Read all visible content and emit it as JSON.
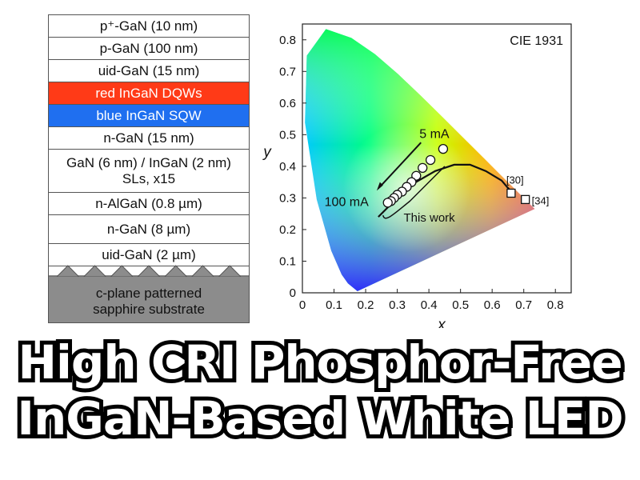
{
  "layers": [
    {
      "label": "p⁺-GaN (10 nm)",
      "color": "#ffffff"
    },
    {
      "label": "p-GaN (100 nm)",
      "color": "#ffffff"
    },
    {
      "label": "uid-GaN (15 nm)",
      "color": "#ffffff"
    },
    {
      "label": "red InGaN DQWs",
      "color": "#ff3a17",
      "text_color": "#ffffff"
    },
    {
      "label": "blue InGaN SQW",
      "color": "#1f6ff0",
      "text_color": "#ffffff"
    },
    {
      "label": "n-GaN (15 nm)",
      "color": "#ffffff"
    },
    {
      "label": "GaN (6 nm) / InGaN (2 nm)\nSLs, x15",
      "color": "#ffffff"
    },
    {
      "label": "n-AlGaN (0.8 µm)",
      "color": "#ffffff"
    },
    {
      "label": "n-GaN (8 µm)",
      "color": "#ffffff"
    },
    {
      "label": "uid-GaN (2 µm)",
      "color": "#ffffff"
    }
  ],
  "substrate": {
    "label": "c-plane patterned\nsapphire substrate",
    "color": "#8c8c8c"
  },
  "headline": {
    "line1": "High CRI Phosphor-Free",
    "line2": "InGaN-Based White LED"
  },
  "chart_data": {
    "type": "scatter",
    "title": "CIE 1931",
    "xlabel": "x",
    "ylabel": "y",
    "xlim": [
      0,
      0.85
    ],
    "ylim": [
      0,
      0.85
    ],
    "xticks": [
      0,
      0.1,
      0.2,
      0.3,
      0.4,
      0.5,
      0.6,
      0.7,
      0.8
    ],
    "yticks": [
      0,
      0.1,
      0.2,
      0.3,
      0.4,
      0.5,
      0.6,
      0.7,
      0.8
    ],
    "tick_labels": [
      "0",
      "0.1",
      "0.2",
      "0.3",
      "0.4",
      "0.5",
      "0.6",
      "0.7",
      "0.8"
    ],
    "measured_points": [
      {
        "x": 0.445,
        "y": 0.455
      },
      {
        "x": 0.405,
        "y": 0.42
      },
      {
        "x": 0.38,
        "y": 0.395
      },
      {
        "x": 0.36,
        "y": 0.37
      },
      {
        "x": 0.345,
        "y": 0.35
      },
      {
        "x": 0.33,
        "y": 0.335
      },
      {
        "x": 0.315,
        "y": 0.32
      },
      {
        "x": 0.3,
        "y": 0.31
      },
      {
        "x": 0.29,
        "y": 0.3
      },
      {
        "x": 0.28,
        "y": 0.29
      },
      {
        "x": 0.27,
        "y": 0.285
      }
    ],
    "reference_points": [
      {
        "label": "[30]",
        "x": 0.66,
        "y": 0.315
      },
      {
        "label": "[34]",
        "x": 0.705,
        "y": 0.295
      }
    ],
    "arrow_labels": {
      "start": "5 mA",
      "end": "100 mA"
    },
    "bracket_label": "This work"
  }
}
